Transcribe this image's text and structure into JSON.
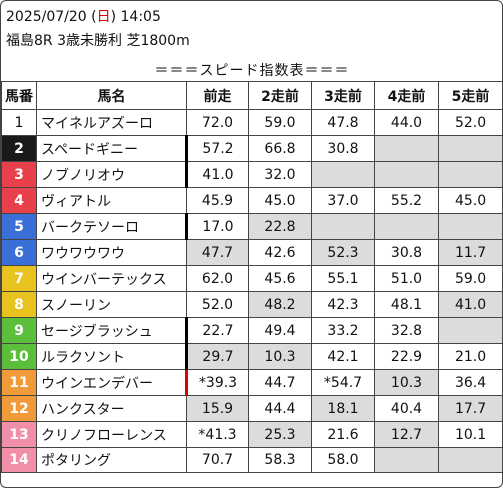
{
  "header": {
    "date_prefix": "2025/07/20 (",
    "weekday": "日",
    "time_suffix": ") 14:05",
    "race": "福島8R 3歳未勝利 芝1800m"
  },
  "table": {
    "title": "＝＝＝スピード指数表＝＝＝",
    "columns": [
      "馬番",
      "馬名",
      "前走",
      "2走前",
      "3走前",
      "4走前",
      "5走前"
    ],
    "rows": [
      {
        "num": "1",
        "color": "#ffffff",
        "name": "マイネルアズーロ",
        "values": [
          "72.0",
          "59.0",
          "47.8",
          "44.0",
          "52.0"
        ],
        "gray": [
          false,
          false,
          false,
          false,
          false
        ],
        "mark": ""
      },
      {
        "num": "2",
        "color": "#1a1a1a",
        "name": "スペードギニー",
        "values": [
          "57.2",
          "66.8",
          "30.8",
          "",
          ""
        ],
        "gray": [
          false,
          false,
          false,
          true,
          true
        ],
        "mark": "black"
      },
      {
        "num": "3",
        "color": "#e8404a",
        "name": "ノブノリオウ",
        "values": [
          "41.0",
          "32.0",
          "",
          "",
          ""
        ],
        "gray": [
          false,
          false,
          true,
          true,
          true
        ],
        "mark": "black"
      },
      {
        "num": "4",
        "color": "#e8404a",
        "name": "ヴィアトル",
        "values": [
          "45.9",
          "45.0",
          "37.0",
          "55.2",
          "45.0"
        ],
        "gray": [
          false,
          false,
          false,
          false,
          false
        ],
        "mark": ""
      },
      {
        "num": "5",
        "color": "#3a6fd8",
        "name": "バークテソーロ",
        "values": [
          "17.0",
          "22.8",
          "",
          "",
          ""
        ],
        "gray": [
          false,
          true,
          true,
          true,
          true
        ],
        "mark": "black"
      },
      {
        "num": "6",
        "color": "#3a6fd8",
        "name": "ワウワウワウ",
        "values": [
          "47.7",
          "42.6",
          "52.3",
          "30.8",
          "11.7"
        ],
        "gray": [
          true,
          false,
          true,
          false,
          true
        ],
        "mark": ""
      },
      {
        "num": "7",
        "color": "#e8c21e",
        "name": "ウインバーテックス",
        "values": [
          "62.0",
          "45.6",
          "55.1",
          "51.0",
          "59.0"
        ],
        "gray": [
          false,
          false,
          false,
          false,
          false
        ],
        "mark": ""
      },
      {
        "num": "8",
        "color": "#e8c21e",
        "name": "スノーリン",
        "values": [
          "52.0",
          "48.2",
          "42.3",
          "48.1",
          "41.0"
        ],
        "gray": [
          false,
          true,
          false,
          false,
          true
        ],
        "mark": ""
      },
      {
        "num": "9",
        "color": "#5bbf3c",
        "name": "セージブラッシュ",
        "values": [
          "22.7",
          "49.4",
          "33.2",
          "32.8",
          ""
        ],
        "gray": [
          false,
          false,
          false,
          false,
          true
        ],
        "mark": "black"
      },
      {
        "num": "10",
        "color": "#5bbf3c",
        "name": "ルラクソント",
        "values": [
          "29.7",
          "10.3",
          "42.1",
          "22.9",
          "21.0"
        ],
        "gray": [
          true,
          true,
          false,
          false,
          false
        ],
        "mark": "black"
      },
      {
        "num": "11",
        "color": "#f09a3a",
        "name": "ウインエンデバー",
        "values": [
          "*39.3",
          "44.7",
          "*54.7",
          "10.3",
          "36.4"
        ],
        "gray": [
          false,
          false,
          false,
          true,
          false
        ],
        "mark": "red"
      },
      {
        "num": "12",
        "color": "#f09a3a",
        "name": "ハンクスター",
        "values": [
          "15.9",
          "44.4",
          "18.1",
          "40.4",
          "17.7"
        ],
        "gray": [
          true,
          false,
          true,
          false,
          true
        ],
        "mark": ""
      },
      {
        "num": "13",
        "color": "#f28fa8",
        "name": "クリノフローレンス",
        "values": [
          "*41.3",
          "25.3",
          "21.6",
          "12.7",
          "10.1"
        ],
        "gray": [
          false,
          true,
          false,
          true,
          false
        ],
        "mark": ""
      },
      {
        "num": "14",
        "color": "#f28fa8",
        "name": "ポタリング",
        "values": [
          "70.7",
          "58.3",
          "58.0",
          "",
          ""
        ],
        "gray": [
          false,
          false,
          false,
          true,
          true
        ],
        "mark": ""
      }
    ]
  }
}
